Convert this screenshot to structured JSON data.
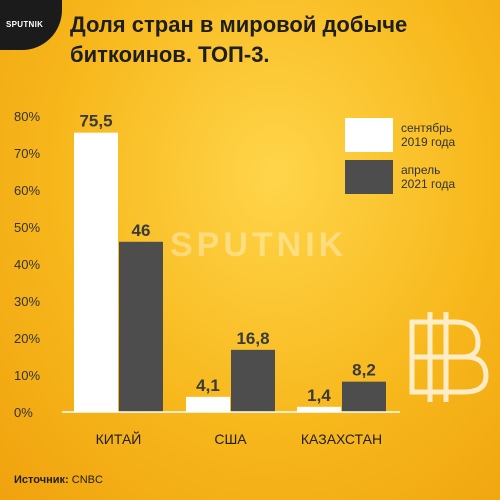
{
  "brand": {
    "logo_text": "SPUTNIK",
    "watermark": "SPUTNIK"
  },
  "title": "Доля стран в мировой добыче биткоинов. ТОП-3.",
  "source": {
    "label": "Источник:",
    "value": "CNBC"
  },
  "colors": {
    "series1": "#ffffff",
    "series2": "#4d4d4d",
    "text": "#333333"
  },
  "chart_data": {
    "type": "bar",
    "categories": [
      "КИТАЙ",
      "США",
      "КАЗАХСТАН"
    ],
    "series": [
      {
        "name": "сентябрь 2019 года",
        "values": [
          75.5,
          4.1,
          1.4
        ],
        "labels": [
          "75,5",
          "4,1",
          "1,4"
        ]
      },
      {
        "name": "апрель 2021 года",
        "values": [
          46,
          16.8,
          8.2
        ],
        "labels": [
          "46",
          "16,8",
          "8,2"
        ]
      }
    ],
    "yticks": [
      0,
      10,
      20,
      30,
      40,
      50,
      60,
      70,
      80
    ],
    "ytick_labels": [
      "0%",
      "10%",
      "20%",
      "30%",
      "40%",
      "50%",
      "60%",
      "70%",
      "80%"
    ],
    "ylim": [
      0,
      80
    ],
    "grid": false,
    "legend": "top-right"
  },
  "legend": [
    {
      "line1": "сентябрь",
      "line2": "2019 года"
    },
    {
      "line1": "апрель",
      "line2": "2021 года"
    }
  ]
}
